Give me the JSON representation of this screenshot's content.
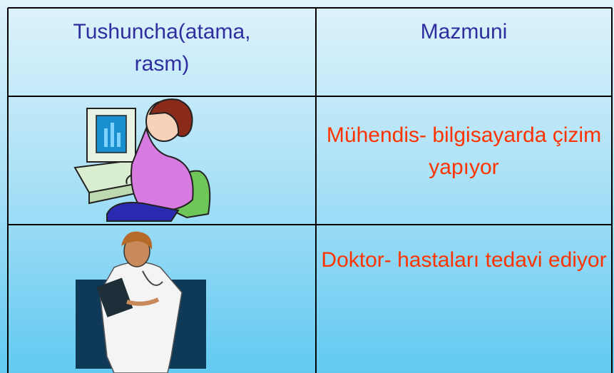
{
  "table": {
    "header": [
      "Tushuncha(atama, rasm)",
      "Mazmuni"
    ],
    "rows": [
      [
        "Mühendis- bilgisayarda çizim yapıyor"
      ],
      [
        "Doktor- hastaları tedavi ediyor"
      ]
    ]
  }
}
